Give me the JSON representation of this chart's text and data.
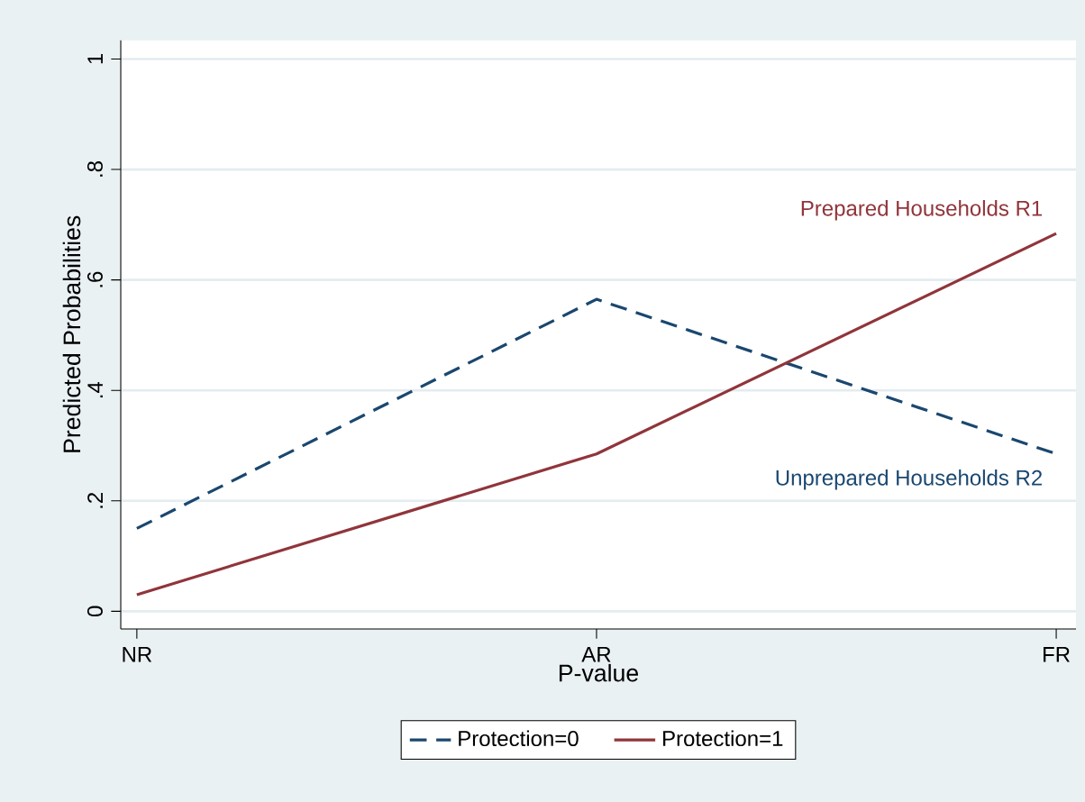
{
  "chart_data": {
    "type": "line",
    "xlabel": "P-value",
    "ylabel": "Predicted Probabilities",
    "categories": [
      "NR",
      "AR",
      "FR"
    ],
    "series": [
      {
        "name": "Protection=0",
        "color": "#1a476f",
        "line_style": "dashed",
        "values": [
          0.15,
          0.565,
          0.285
        ]
      },
      {
        "name": "Protection=1",
        "color": "#90353b",
        "line_style": "solid",
        "values": [
          0.03,
          0.285,
          0.684
        ]
      }
    ],
    "ylim": [
      -0.032,
      1.034
    ],
    "yticks": [
      0,
      {
        "value": 0.2,
        "label": ".2"
      },
      {
        "value": 0.4,
        "label": ".4"
      },
      {
        "value": 0.6,
        "label": ".6"
      },
      {
        "value": 0.8,
        "label": ".8"
      },
      1
    ],
    "grid": "y",
    "legend": "bottom",
    "marker": "none",
    "annotations": [
      {
        "text": "Prepared Households R1",
        "x": "FR",
        "y": 0.684
      },
      {
        "text": "Unprepared Households R2",
        "x": "FR",
        "y": 0.285
      }
    ]
  }
}
